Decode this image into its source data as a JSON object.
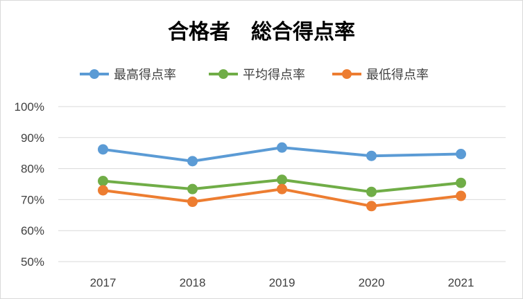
{
  "chart_data": {
    "type": "line",
    "title": "合格者　総合得点率",
    "categories": [
      "2017",
      "2018",
      "2019",
      "2020",
      "2021"
    ],
    "ylim": [
      0.5,
      1.0
    ],
    "y_ticks": [
      "100%",
      "90%",
      "80%",
      "70%",
      "60%",
      "50%"
    ],
    "y_tick_values": [
      1.0,
      0.9,
      0.8,
      0.7,
      0.6,
      0.5
    ],
    "grid": true,
    "legend_position": "top",
    "series": [
      {
        "name": "最高得点率",
        "color": "#5b9bd5",
        "values": [
          0.862,
          0.824,
          0.868,
          0.841,
          0.847
        ]
      },
      {
        "name": "平均得点率",
        "color": "#70ad47",
        "values": [
          0.76,
          0.734,
          0.764,
          0.725,
          0.754
        ]
      },
      {
        "name": "最低得点率",
        "color": "#ed7d31",
        "values": [
          0.73,
          0.693,
          0.734,
          0.679,
          0.712
        ]
      }
    ]
  }
}
